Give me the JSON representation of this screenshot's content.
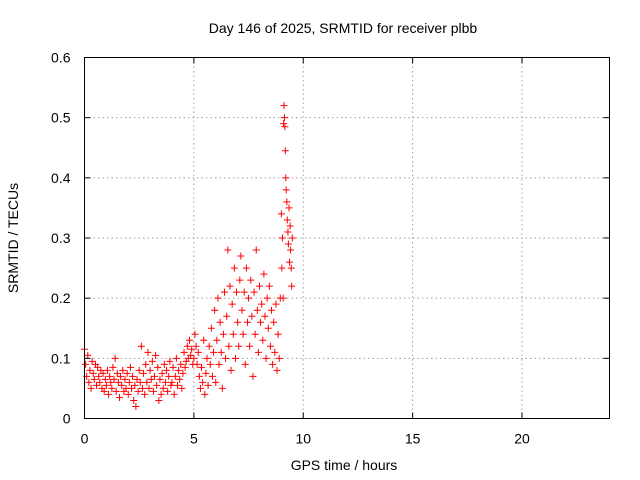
{
  "chart_data": {
    "type": "scatter",
    "title": "Day 146 of 2025, SRMTID for receiver plbb",
    "xlabel": "GPS time / hours",
    "ylabel": "SRMTID / TECUs",
    "xlim": [
      0,
      24
    ],
    "ylim": [
      0,
      0.6
    ],
    "xticks": [
      0,
      5,
      10,
      15,
      20
    ],
    "xtick_labels": [
      "0",
      "5",
      "10",
      "15",
      "20"
    ],
    "yticks": [
      0,
      0.1,
      0.2,
      0.3,
      0.4,
      0.5,
      0.6
    ],
    "ytick_labels": [
      "0",
      "0.1",
      "0.2",
      "0.3",
      "0.4",
      "0.5",
      "0.6"
    ],
    "grid": true,
    "marker": "plus",
    "color": "#ff0000",
    "series": [
      {
        "name": "SRMTID",
        "points": [
          [
            0.0,
            0.115
          ],
          [
            0.05,
            0.09
          ],
          [
            0.1,
            0.07
          ],
          [
            0.15,
            0.105
          ],
          [
            0.2,
            0.06
          ],
          [
            0.25,
            0.08
          ],
          [
            0.3,
            0.05
          ],
          [
            0.35,
            0.095
          ],
          [
            0.4,
            0.075
          ],
          [
            0.45,
            0.065
          ],
          [
            0.5,
            0.09
          ],
          [
            0.55,
            0.055
          ],
          [
            0.6,
            0.085
          ],
          [
            0.65,
            0.07
          ],
          [
            0.7,
            0.06
          ],
          [
            0.75,
            0.08
          ],
          [
            0.8,
            0.05
          ],
          [
            0.85,
            0.075
          ],
          [
            0.9,
            0.045
          ],
          [
            0.95,
            0.065
          ],
          [
            1.0,
            0.055
          ],
          [
            1.05,
            0.08
          ],
          [
            1.1,
            0.04
          ],
          [
            1.15,
            0.07
          ],
          [
            1.2,
            0.06
          ],
          [
            1.25,
            0.05
          ],
          [
            1.3,
            0.085
          ],
          [
            1.35,
            0.065
          ],
          [
            1.4,
            0.1
          ],
          [
            1.45,
            0.045
          ],
          [
            1.5,
            0.075
          ],
          [
            1.55,
            0.06
          ],
          [
            1.6,
            0.035
          ],
          [
            1.65,
            0.07
          ],
          [
            1.7,
            0.055
          ],
          [
            1.75,
            0.08
          ],
          [
            1.8,
            0.045
          ],
          [
            1.85,
            0.065
          ],
          [
            1.9,
            0.05
          ],
          [
            1.95,
            0.075
          ],
          [
            2.0,
            0.04
          ],
          [
            2.05,
            0.06
          ],
          [
            2.1,
            0.085
          ],
          [
            2.15,
            0.05
          ],
          [
            2.2,
            0.07
          ],
          [
            2.25,
            0.03
          ],
          [
            2.3,
            0.055
          ],
          [
            2.35,
            0.02
          ],
          [
            2.4,
            0.065
          ],
          [
            2.45,
            0.045
          ],
          [
            2.5,
            0.08
          ],
          [
            2.55,
            0.06
          ],
          [
            2.6,
            0.12
          ],
          [
            2.65,
            0.05
          ],
          [
            2.7,
            0.075
          ],
          [
            2.75,
            0.04
          ],
          [
            2.8,
            0.09
          ],
          [
            2.85,
            0.06
          ],
          [
            2.9,
            0.11
          ],
          [
            2.95,
            0.05
          ],
          [
            3.0,
            0.08
          ],
          [
            3.05,
            0.065
          ],
          [
            3.1,
            0.095
          ],
          [
            3.15,
            0.045
          ],
          [
            3.2,
            0.07
          ],
          [
            3.25,
            0.105
          ],
          [
            3.3,
            0.055
          ],
          [
            3.35,
            0.085
          ],
          [
            3.4,
            0.03
          ],
          [
            3.45,
            0.065
          ],
          [
            3.5,
            0.04
          ],
          [
            3.55,
            0.075
          ],
          [
            3.6,
            0.05
          ],
          [
            3.65,
            0.09
          ],
          [
            3.7,
            0.06
          ],
          [
            3.75,
            0.08
          ],
          [
            3.8,
            0.045
          ],
          [
            3.85,
            0.07
          ],
          [
            3.9,
            0.095
          ],
          [
            3.95,
            0.055
          ],
          [
            4.0,
            0.06
          ],
          [
            4.05,
            0.085
          ],
          [
            4.1,
            0.04
          ],
          [
            4.15,
            0.07
          ],
          [
            4.2,
            0.1
          ],
          [
            4.25,
            0.055
          ],
          [
            4.3,
            0.08
          ],
          [
            4.35,
            0.065
          ],
          [
            4.4,
            0.09
          ],
          [
            4.45,
            0.05
          ],
          [
            4.5,
            0.075
          ],
          [
            4.55,
            0.11
          ],
          [
            4.6,
            0.085
          ],
          [
            4.65,
            0.095
          ],
          [
            4.7,
            0.12
          ],
          [
            4.75,
            0.1
          ],
          [
            4.8,
            0.13
          ],
          [
            4.85,
            0.105
          ],
          [
            4.9,
            0.115
          ],
          [
            4.95,
            0.09
          ],
          [
            5.0,
            0.1
          ],
          [
            5.05,
            0.14
          ],
          [
            5.1,
            0.12
          ],
          [
            5.15,
            0.09
          ],
          [
            5.2,
            0.11
          ],
          [
            5.25,
            0.07
          ],
          [
            5.3,
            0.05
          ],
          [
            5.35,
            0.085
          ],
          [
            5.4,
            0.06
          ],
          [
            5.45,
            0.13
          ],
          [
            5.5,
            0.04
          ],
          [
            5.55,
            0.075
          ],
          [
            5.6,
            0.1
          ],
          [
            5.65,
            0.055
          ],
          [
            5.7,
            0.12
          ],
          [
            5.75,
            0.09
          ],
          [
            5.8,
            0.15
          ],
          [
            5.85,
            0.07
          ],
          [
            5.9,
            0.11
          ],
          [
            5.95,
            0.18
          ],
          [
            6.0,
            0.06
          ],
          [
            6.05,
            0.13
          ],
          [
            6.1,
            0.2
          ],
          [
            6.15,
            0.09
          ],
          [
            6.2,
            0.16
          ],
          [
            6.25,
            0.11
          ],
          [
            6.3,
            0.05
          ],
          [
            6.35,
            0.14
          ],
          [
            6.4,
            0.21
          ],
          [
            6.45,
            0.1
          ],
          [
            6.5,
            0.17
          ],
          [
            6.55,
            0.28
          ],
          [
            6.6,
            0.12
          ],
          [
            6.65,
            0.22
          ],
          [
            6.7,
            0.08
          ],
          [
            6.75,
            0.19
          ],
          [
            6.8,
            0.14
          ],
          [
            6.85,
            0.25
          ],
          [
            6.9,
            0.1
          ],
          [
            6.95,
            0.21
          ],
          [
            7.0,
            0.16
          ],
          [
            7.05,
            0.12
          ],
          [
            7.1,
            0.23
          ],
          [
            7.15,
            0.27
          ],
          [
            7.2,
            0.18
          ],
          [
            7.25,
            0.14
          ],
          [
            7.3,
            0.21
          ],
          [
            7.35,
            0.09
          ],
          [
            7.4,
            0.25
          ],
          [
            7.45,
            0.16
          ],
          [
            7.5,
            0.2
          ],
          [
            7.55,
            0.12
          ],
          [
            7.6,
            0.23
          ],
          [
            7.65,
            0.17
          ],
          [
            7.7,
            0.07
          ],
          [
            7.75,
            0.21
          ],
          [
            7.8,
            0.14
          ],
          [
            7.85,
            0.28
          ],
          [
            7.9,
            0.18
          ],
          [
            7.95,
            0.11
          ],
          [
            8.0,
            0.22
          ],
          [
            8.05,
            0.16
          ],
          [
            8.1,
            0.19
          ],
          [
            8.15,
            0.13
          ],
          [
            8.2,
            0.24
          ],
          [
            8.25,
            0.17
          ],
          [
            8.3,
            0.1
          ],
          [
            8.35,
            0.2
          ],
          [
            8.4,
            0.15
          ],
          [
            8.45,
            0.22
          ],
          [
            8.5,
            0.12
          ],
          [
            8.55,
            0.18
          ],
          [
            8.6,
            0.09
          ],
          [
            8.65,
            0.16
          ],
          [
            8.7,
            0.11
          ],
          [
            8.75,
            0.19
          ],
          [
            8.8,
            0.08
          ],
          [
            8.85,
            0.14
          ],
          [
            8.9,
            0.1
          ],
          [
            8.95,
            0.2
          ],
          [
            9.0,
            0.34
          ],
          [
            9.02,
            0.25
          ],
          [
            9.05,
            0.3
          ],
          [
            9.08,
            0.2
          ],
          [
            9.1,
            0.49
          ],
          [
            9.12,
            0.52
          ],
          [
            9.14,
            0.5
          ],
          [
            9.16,
            0.485
          ],
          [
            9.18,
            0.445
          ],
          [
            9.2,
            0.4
          ],
          [
            9.22,
            0.38
          ],
          [
            9.25,
            0.36
          ],
          [
            9.27,
            0.33
          ],
          [
            9.3,
            0.31
          ],
          [
            9.32,
            0.29
          ],
          [
            9.35,
            0.35
          ],
          [
            9.37,
            0.26
          ],
          [
            9.4,
            0.32
          ],
          [
            9.42,
            0.28
          ],
          [
            9.45,
            0.25
          ],
          [
            9.47,
            0.22
          ],
          [
            9.5,
            0.3
          ]
        ]
      }
    ]
  }
}
